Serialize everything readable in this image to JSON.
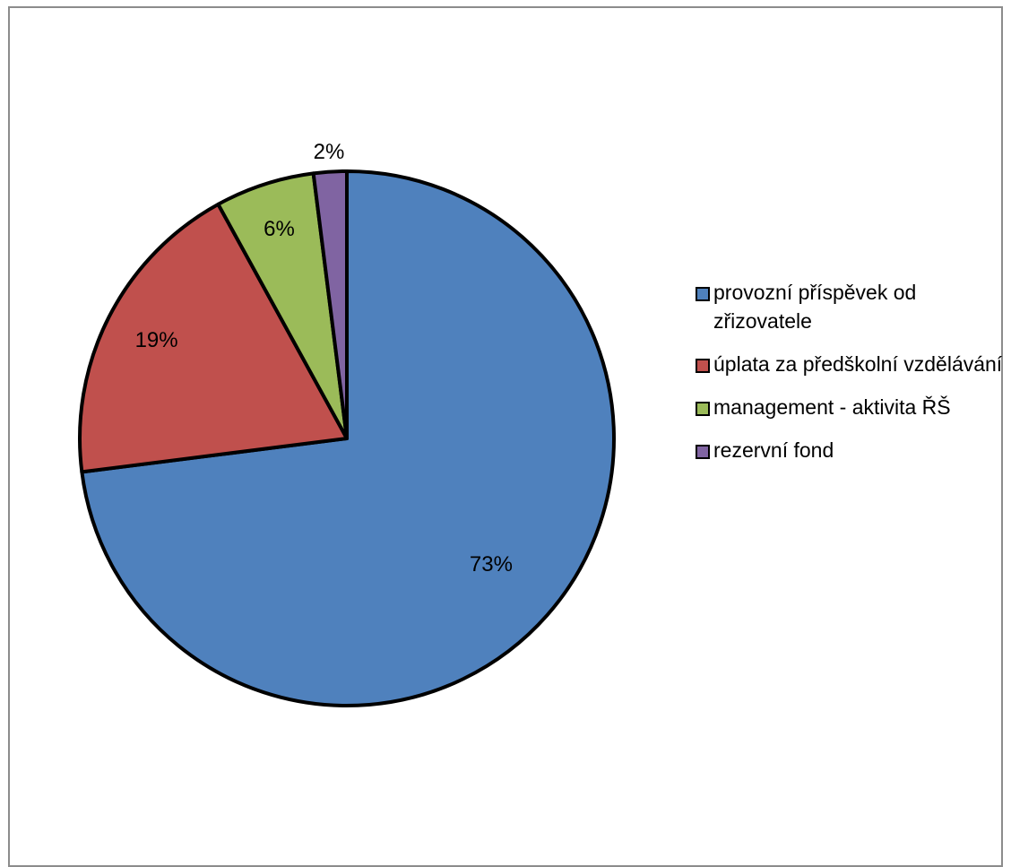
{
  "chart_data": {
    "type": "pie",
    "title": "",
    "start_angle_deg": 0,
    "direction": "clockwise",
    "slices": [
      {
        "label": "provozní příspěvek od zřizovatele",
        "value": 73,
        "value_label": "73%",
        "color": "#4f81bd"
      },
      {
        "label": "úplata za předškolní vzdělávání",
        "value": 19,
        "value_label": "19%",
        "color": "#c0504d"
      },
      {
        "label": "management - aktivita ŘŠ",
        "value": 6,
        "value_label": "6%",
        "color": "#9bbb59"
      },
      {
        "label": "rezervní fond",
        "value": 2,
        "value_label": "2%",
        "color": "#8064a2"
      }
    ],
    "legend": {
      "position": "right",
      "items": [
        {
          "label": "provozní příspěvek od zřizovatele",
          "color": "#4f81bd"
        },
        {
          "label": "úplata za předškolní vzdělávání",
          "color": "#c0504d"
        },
        {
          "label": "management - aktivita ŘŠ",
          "color": "#9bbb59"
        },
        {
          "label": "rezervní fond",
          "color": "#8064a2"
        }
      ]
    }
  }
}
